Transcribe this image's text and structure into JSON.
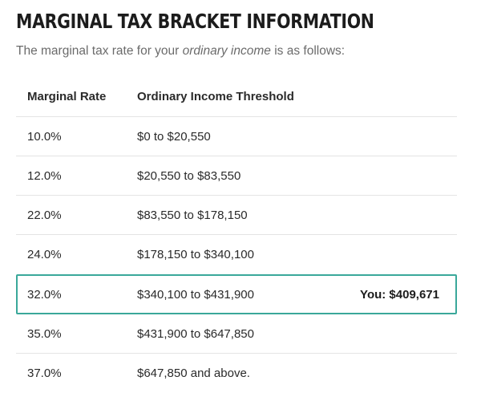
{
  "title": "MARGINAL TAX BRACKET INFORMATION",
  "subtitle": {
    "before": "The marginal tax rate for your ",
    "emphasis": "ordinary income",
    "after": " is as follows:"
  },
  "table": {
    "columns": [
      "Marginal Rate",
      "Ordinary Income Threshold"
    ],
    "rows": [
      {
        "rate": "10.0%",
        "threshold": "$0 to $20,550",
        "you": ""
      },
      {
        "rate": "12.0%",
        "threshold": "$20,550 to $83,550",
        "you": ""
      },
      {
        "rate": "22.0%",
        "threshold": "$83,550 to $178,150",
        "you": ""
      },
      {
        "rate": "24.0%",
        "threshold": "$178,150 to $340,100",
        "you": ""
      },
      {
        "rate": "32.0%",
        "threshold": "$340,100 to $431,900",
        "you": "You: $409,671"
      },
      {
        "rate": "35.0%",
        "threshold": "$431,900 to $647,850",
        "you": ""
      },
      {
        "rate": "37.0%",
        "threshold": "$647,850 and above.",
        "you": ""
      }
    ]
  },
  "colors": {
    "highlight_border": "#3aa89a",
    "row_divider": "#e4e4e4",
    "subtitle_text": "#6b6b6b"
  }
}
